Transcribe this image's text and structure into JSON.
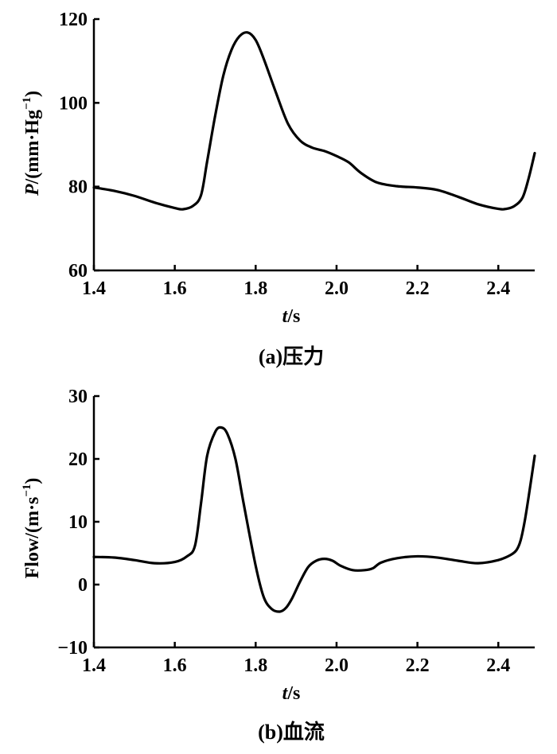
{
  "chart_data": [
    {
      "type": "line",
      "caption": "(a)压力",
      "xlabel_italic": "t",
      "xlabel_rest": "/s",
      "ylabel_italic": "P",
      "ylabel_rest": "/(mm·Hg",
      "ylabel_sup": "−1",
      "ylabel_close": ")",
      "xlim": [
        1.4,
        2.49
      ],
      "ylim": [
        60,
        120
      ],
      "xticks": [
        1.4,
        1.6,
        1.8,
        2.0,
        2.2,
        2.4
      ],
      "xtick_labels": [
        "1.4",
        "1.6",
        "1.8",
        "2.0",
        "2.2",
        "2.4"
      ],
      "yticks": [
        60,
        80,
        100,
        120
      ],
      "ytick_labels": [
        "60",
        "80",
        "100",
        "120"
      ],
      "series": [
        {
          "x": [
            1.4,
            1.45,
            1.5,
            1.55,
            1.6,
            1.62,
            1.645,
            1.665,
            1.68,
            1.7,
            1.72,
            1.74,
            1.76,
            1.78,
            1.8,
            1.82,
            1.85,
            1.88,
            1.91,
            1.94,
            1.97,
            2.0,
            2.03,
            2.06,
            2.1,
            2.15,
            2.2,
            2.25,
            2.3,
            2.35,
            2.4,
            2.42,
            2.44,
            2.46,
            2.475,
            2.49
          ],
          "y": [
            79.8,
            79.0,
            77.8,
            76.2,
            74.9,
            74.6,
            75.4,
            78.0,
            86.0,
            97.0,
            106.5,
            112.6,
            115.9,
            116.8,
            115.0,
            110.5,
            102.5,
            95.0,
            91.0,
            89.3,
            88.5,
            87.3,
            85.8,
            83.3,
            81.0,
            80.1,
            79.8,
            79.2,
            77.6,
            75.8,
            74.7,
            74.7,
            75.4,
            77.4,
            82.0,
            88.0
          ]
        }
      ]
    },
    {
      "type": "line",
      "caption": "(b)血流",
      "xlabel_italic": "t",
      "xlabel_rest": "/s",
      "ylabel_main": "Flow/(m·s",
      "ylabel_sup": "−1",
      "ylabel_close": ")",
      "xlim": [
        1.4,
        2.49
      ],
      "ylim": [
        -10,
        30
      ],
      "xticks": [
        1.4,
        1.6,
        1.8,
        2.0,
        2.2,
        2.4
      ],
      "xtick_labels": [
        "1.4",
        "1.6",
        "1.8",
        "2.0",
        "2.2",
        "2.4"
      ],
      "yticks": [
        -10,
        0,
        10,
        20,
        30
      ],
      "ytick_labels": [
        "−10",
        "0",
        "10",
        "20",
        "30"
      ],
      "series": [
        {
          "x": [
            1.4,
            1.45,
            1.5,
            1.55,
            1.6,
            1.63,
            1.65,
            1.665,
            1.68,
            1.7,
            1.715,
            1.73,
            1.75,
            1.77,
            1.8,
            1.82,
            1.84,
            1.86,
            1.875,
            1.89,
            1.91,
            1.93,
            1.95,
            1.97,
            1.99,
            2.01,
            2.04,
            2.07,
            2.09,
            2.11,
            2.15,
            2.2,
            2.25,
            2.3,
            2.35,
            2.4,
            2.43,
            2.445,
            2.455,
            2.465,
            2.475,
            2.49
          ],
          "y": [
            4.4,
            4.3,
            3.9,
            3.4,
            3.6,
            4.5,
            6.2,
            13.0,
            20.5,
            24.3,
            25.0,
            24.0,
            20.0,
            13.0,
            3.0,
            -2.0,
            -3.9,
            -4.3,
            -3.7,
            -2.2,
            0.5,
            2.8,
            3.8,
            4.1,
            3.8,
            3.0,
            2.3,
            2.3,
            2.6,
            3.5,
            4.2,
            4.5,
            4.3,
            3.8,
            3.4,
            3.9,
            4.7,
            5.5,
            7.0,
            10.0,
            14.0,
            20.5
          ]
        }
      ]
    }
  ]
}
